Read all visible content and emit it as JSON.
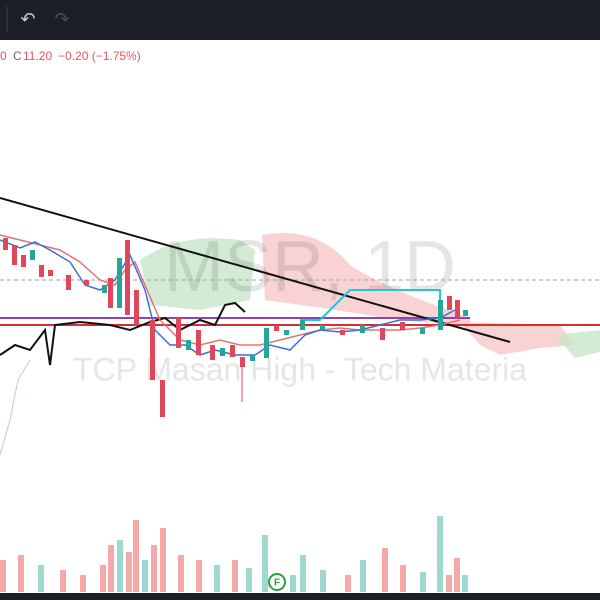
{
  "toolbar": {
    "undo": "↶",
    "redo": "↷"
  },
  "legend": {
    "fragment": "0",
    "close_label": "C",
    "close_value": "11.20",
    "change": "−0.20 (−1.75%)"
  },
  "watermark": {
    "symbol": "MSR, 1D",
    "description": "TCP Masan High - Tech Materia"
  },
  "marker": {
    "label": "F"
  }
}
